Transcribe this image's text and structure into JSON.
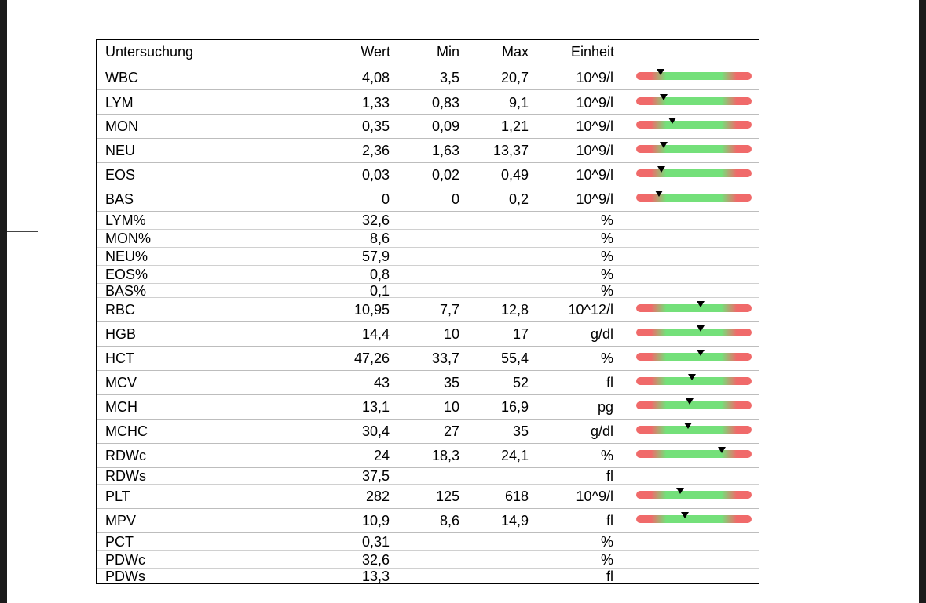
{
  "table": {
    "headers": {
      "name": "Untersuchung",
      "wert": "Wert",
      "min": "Min",
      "max": "Max",
      "unit": "Einheit"
    },
    "rows": [
      {
        "name": "WBC",
        "wert": "4,08",
        "min": "3,5",
        "max": "20,7",
        "unit": "10^9/l",
        "indicator_position": 0.21
      },
      {
        "name": "LYM",
        "wert": "1,33",
        "min": "0,83",
        "max": "9,1",
        "unit": "10^9/l",
        "indicator_position": 0.24
      },
      {
        "name": "MON",
        "wert": "0,35",
        "min": "0,09",
        "max": "1,21",
        "unit": "10^9/l",
        "indicator_position": 0.31
      },
      {
        "name": "NEU",
        "wert": "2,36",
        "min": "1,63",
        "max": "13,37",
        "unit": "10^9/l",
        "indicator_position": 0.24
      },
      {
        "name": "EOS",
        "wert": "0,03",
        "min": "0,02",
        "max": "0,49",
        "unit": "10^9/l",
        "indicator_position": 0.22
      },
      {
        "name": "BAS",
        "wert": "0",
        "min": "0",
        "max": "0,2",
        "unit": "10^9/l",
        "indicator_position": 0.2
      },
      {
        "name": "LYM%",
        "wert": "32,6",
        "min": "",
        "max": "",
        "unit": "%"
      },
      {
        "name": "MON%",
        "wert": "8,6",
        "min": "",
        "max": "",
        "unit": "%"
      },
      {
        "name": "NEU%",
        "wert": "57,9",
        "min": "",
        "max": "",
        "unit": "%"
      },
      {
        "name": "EOS%",
        "wert": "0,8",
        "min": "",
        "max": "",
        "unit": "%"
      },
      {
        "name": "BAS%",
        "wert": "0,1",
        "min": "",
        "max": "",
        "unit": "%"
      },
      {
        "name": "RBC",
        "wert": "10,95",
        "min": "7,7",
        "max": "12,8",
        "unit": "10^12/l",
        "indicator_position": 0.56
      },
      {
        "name": "HGB",
        "wert": "14,4",
        "min": "10",
        "max": "17",
        "unit": "g/dl",
        "indicator_position": 0.56
      },
      {
        "name": "HCT",
        "wert": "47,26",
        "min": "33,7",
        "max": "55,4",
        "unit": "%",
        "indicator_position": 0.56
      },
      {
        "name": "MCV",
        "wert": "43",
        "min": "35",
        "max": "52",
        "unit": "fl",
        "indicator_position": 0.48
      },
      {
        "name": "MCH",
        "wert": "13,1",
        "min": "10",
        "max": "16,9",
        "unit": "pg",
        "indicator_position": 0.46
      },
      {
        "name": "MCHC",
        "wert": "30,4",
        "min": "27",
        "max": "35",
        "unit": "g/dl",
        "indicator_position": 0.45
      },
      {
        "name": "RDWc",
        "wert": "24",
        "min": "18,3",
        "max": "24,1",
        "unit": "%",
        "indicator_position": 0.74
      },
      {
        "name": "RDWs",
        "wert": "37,5",
        "min": "",
        "max": "",
        "unit": "fl"
      },
      {
        "name": "PLT",
        "wert": "282",
        "min": "125",
        "max": "618",
        "unit": "10^9/l",
        "indicator_position": 0.38
      },
      {
        "name": "MPV",
        "wert": "10,9",
        "min": "8,6",
        "max": "14,9",
        "unit": "fl",
        "indicator_position": 0.42
      },
      {
        "name": "PCT",
        "wert": "0,31",
        "min": "",
        "max": "",
        "unit": "%"
      },
      {
        "name": "PDWc",
        "wert": "32,6",
        "min": "",
        "max": "",
        "unit": "%"
      },
      {
        "name": "PDWs",
        "wert": "13,3",
        "min": "",
        "max": "",
        "unit": "fl"
      }
    ]
  },
  "colors": {
    "range_normal": "#74e07a",
    "range_abnormal": "#f06a6a",
    "marker": "#000000"
  }
}
